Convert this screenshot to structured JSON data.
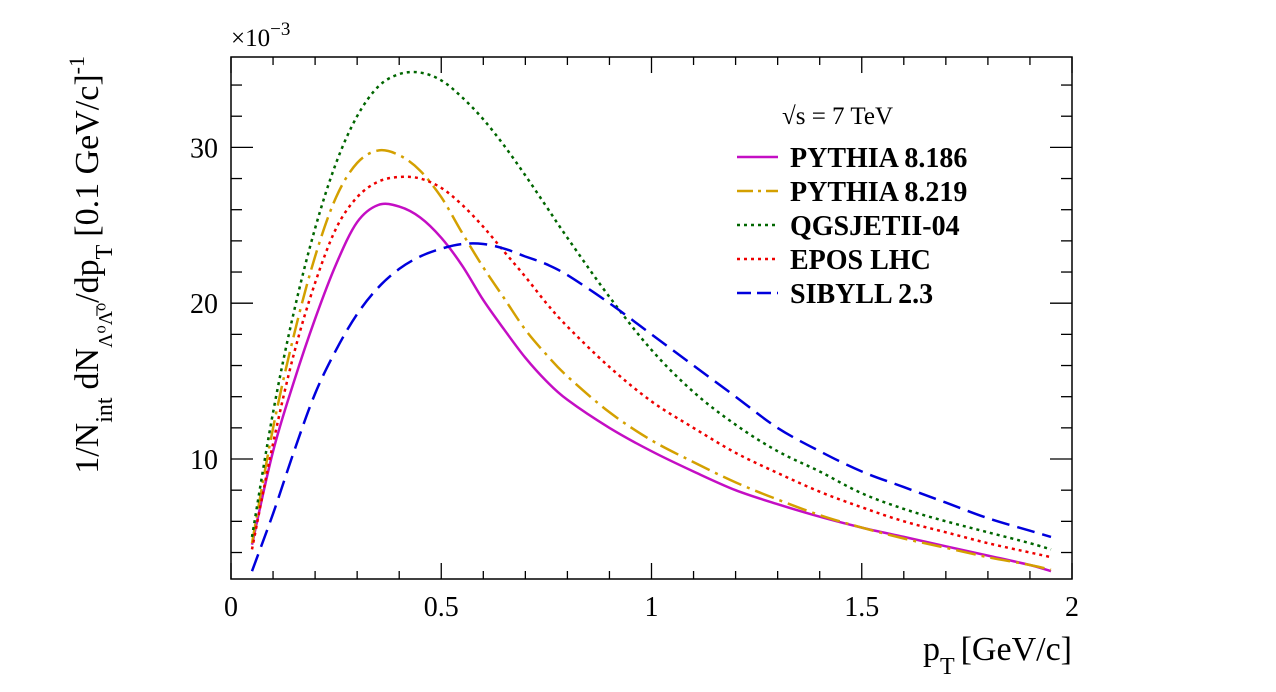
{
  "chart_data": {
    "type": "line",
    "header": "√s = 7 TeV",
    "xlabel": "p",
    "xlabel_sub": "T",
    "xlabel_unit": "[GeV/c]",
    "ylabel_parts": {
      "p1": "1/N",
      "p1_sub": "int",
      "p2": "dN",
      "p2_sub": "Λ⁰Λ̅⁰",
      "p3": "/dp",
      "p3_sub": "T",
      "p4": "[0.1 GeV/c]",
      "p4_sup": "-1"
    },
    "y_exponent_label": "×10",
    "y_exponent": "−3",
    "xlim": [
      0,
      2
    ],
    "ylim": [
      2.3,
      35.8
    ],
    "x_ticks": [
      0,
      0.5,
      1,
      1.5,
      2
    ],
    "x_tick_labels": [
      "0",
      "0.5",
      "1",
      "1.5",
      "2"
    ],
    "y_ticks": [
      10,
      20,
      30
    ],
    "y_tick_labels": [
      "10",
      "20",
      "30"
    ],
    "y_scale_note": "values in units of 1e-3",
    "legend_position": "top-right",
    "grid": false,
    "series": [
      {
        "name": "PYTHIA 8.186",
        "color": "#c40ec4",
        "style": "solid",
        "x": [
          0.05,
          0.1,
          0.15,
          0.2,
          0.25,
          0.3,
          0.35,
          0.4,
          0.45,
          0.5,
          0.55,
          0.6,
          0.65,
          0.7,
          0.75,
          0.8,
          0.9,
          1.0,
          1.1,
          1.2,
          1.3,
          1.4,
          1.5,
          1.6,
          1.7,
          1.8,
          1.9,
          1.95
        ],
        "y": [
          4.5,
          10.5,
          15.0,
          19.0,
          22.5,
          25.2,
          26.3,
          26.2,
          25.5,
          24.2,
          22.4,
          20.2,
          18.3,
          16.5,
          15.0,
          13.8,
          12.0,
          10.5,
          9.2,
          8.0,
          7.1,
          6.3,
          5.6,
          5.0,
          4.4,
          3.8,
          3.2,
          2.8
        ]
      },
      {
        "name": "PYTHIA 8.219",
        "color": "#d4a000",
        "style": "dashdot",
        "x": [
          0.05,
          0.1,
          0.15,
          0.2,
          0.25,
          0.3,
          0.35,
          0.4,
          0.45,
          0.5,
          0.55,
          0.6,
          0.65,
          0.7,
          0.75,
          0.8,
          0.9,
          1.0,
          1.1,
          1.2,
          1.3,
          1.4,
          1.5,
          1.6,
          1.7,
          1.8,
          1.9,
          1.95
        ],
        "y": [
          4.6,
          12.0,
          18.0,
          23.0,
          26.8,
          29.0,
          29.8,
          29.5,
          28.5,
          26.8,
          24.5,
          22.3,
          20.3,
          18.3,
          16.7,
          15.3,
          13.0,
          11.2,
          9.8,
          8.5,
          7.4,
          6.4,
          5.6,
          4.9,
          4.3,
          3.7,
          3.2,
          2.9
        ]
      },
      {
        "name": "QGSJETII-04",
        "color": "#006600",
        "style": "dotted",
        "x": [
          0.05,
          0.1,
          0.15,
          0.2,
          0.25,
          0.3,
          0.35,
          0.4,
          0.45,
          0.5,
          0.55,
          0.6,
          0.65,
          0.7,
          0.75,
          0.8,
          0.9,
          1.0,
          1.1,
          1.2,
          1.3,
          1.4,
          1.5,
          1.6,
          1.7,
          1.8,
          1.9,
          1.95
        ],
        "y": [
          5.0,
          13.0,
          19.5,
          24.8,
          29.0,
          32.0,
          33.9,
          34.7,
          34.8,
          34.3,
          33.2,
          31.8,
          30.1,
          28.2,
          26.2,
          24.2,
          20.4,
          17.0,
          14.3,
          12.2,
          10.5,
          9.2,
          7.8,
          6.8,
          6.0,
          5.3,
          4.6,
          4.2
        ]
      },
      {
        "name": "EPOS LHC",
        "color": "#ee0000",
        "style": "dotted",
        "x": [
          0.05,
          0.1,
          0.15,
          0.2,
          0.25,
          0.3,
          0.35,
          0.4,
          0.45,
          0.5,
          0.55,
          0.6,
          0.65,
          0.7,
          0.75,
          0.8,
          0.9,
          1.0,
          1.1,
          1.2,
          1.3,
          1.4,
          1.5,
          1.6,
          1.7,
          1.8,
          1.9,
          1.95
        ],
        "y": [
          4.2,
          11.0,
          16.8,
          21.3,
          24.8,
          26.8,
          27.8,
          28.1,
          28.0,
          27.4,
          26.3,
          24.9,
          23.3,
          21.7,
          20.0,
          18.5,
          15.9,
          13.7,
          12.0,
          10.4,
          9.1,
          7.9,
          6.9,
          6.0,
          5.3,
          4.6,
          4.0,
          3.7
        ]
      },
      {
        "name": "SIBYLL 2.3",
        "color": "#0000dd",
        "style": "dashed",
        "x": [
          0.05,
          0.1,
          0.15,
          0.2,
          0.25,
          0.3,
          0.35,
          0.4,
          0.45,
          0.5,
          0.55,
          0.6,
          0.65,
          0.7,
          0.75,
          0.8,
          0.9,
          1.0,
          1.1,
          1.2,
          1.3,
          1.4,
          1.5,
          1.6,
          1.7,
          1.8,
          1.9,
          1.95
        ],
        "y": [
          2.8,
          6.5,
          10.5,
          14.2,
          17.0,
          19.3,
          21.0,
          22.2,
          23.0,
          23.5,
          23.8,
          23.8,
          23.5,
          23.0,
          22.5,
          21.8,
          20.0,
          18.0,
          16.0,
          14.0,
          12.0,
          10.5,
          9.2,
          8.2,
          7.2,
          6.2,
          5.4,
          5.0
        ]
      }
    ]
  }
}
